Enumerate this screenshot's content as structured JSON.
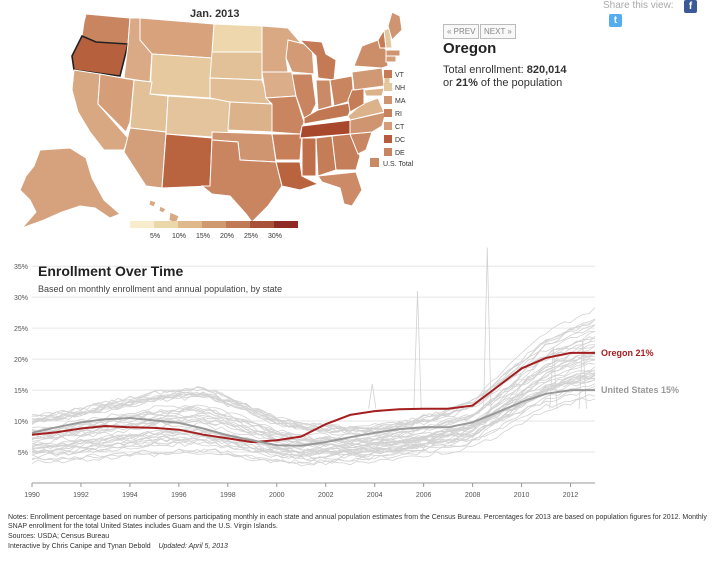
{
  "map": {
    "title": "Jan. 2013",
    "legend_ticks": [
      "5%",
      "10%",
      "15%",
      "20%",
      "25%",
      "30%"
    ],
    "legend_colors": [
      "#f7eccb",
      "#ead7aa",
      "#dfb88b",
      "#d09a70",
      "#c07a56",
      "#a8523a",
      "#8f2a24"
    ],
    "small_states": [
      {
        "label": "VT",
        "color": "#c77b55"
      },
      {
        "label": "NH",
        "color": "#e3c79e"
      },
      {
        "label": "MA",
        "color": "#cf9470"
      },
      {
        "label": "RI",
        "color": "#c7815d"
      },
      {
        "label": "CT",
        "color": "#d49c78"
      },
      {
        "label": "DC",
        "color": "#b65c3d"
      },
      {
        "label": "DE",
        "color": "#c9835e"
      }
    ],
    "us_total": {
      "label": "U.S. Total",
      "color": "#c98a66"
    },
    "selected_state": "Oregon"
  },
  "nav": {
    "prev": "« PREV",
    "next": "NEXT »"
  },
  "detail": {
    "state": "Oregon",
    "line1_prefix": "Total enrollment: ",
    "line1_value": "820,014",
    "line2_prefix": "or ",
    "line2_value": "21%",
    "line2_suffix": " of the population"
  },
  "share": {
    "label": "Share this view:",
    "facebook_glyph": "f",
    "twitter_glyph": "t"
  },
  "colors": {
    "highlight": "#a41f1f",
    "us": "#999999",
    "grid": "#e6e6e6",
    "bg_lines": "#d2d2d2"
  },
  "chart_data": {
    "type": "line",
    "title": "Enrollment Over Time",
    "subtitle": "Based on monthly enrollment and annual population, by state",
    "x_ticks": [
      "1990",
      "1992",
      "1994",
      "1996",
      "1998",
      "2000",
      "2002",
      "2004",
      "2006",
      "2008",
      "2010",
      "2012"
    ],
    "y_ticks": [
      "5%",
      "10%",
      "15%",
      "20%",
      "25%",
      "30%",
      "35%"
    ],
    "xlim": [
      1990,
      2013.0
    ],
    "ylim": [
      0,
      36
    ],
    "grid": true,
    "series": [
      {
        "name": "Oregon",
        "label": "Oregon 21%",
        "x": [
          1990,
          1991,
          1992,
          1993,
          1994,
          1995,
          1996,
          1997,
          1998,
          1999,
          2000,
          2001,
          2002,
          2003,
          2004,
          2005,
          2006,
          2007,
          2008,
          2009,
          2010,
          2011,
          2012,
          2013
        ],
        "values": [
          7.8,
          8.2,
          8.8,
          9.2,
          9.0,
          8.9,
          8.6,
          7.8,
          7.2,
          6.6,
          6.9,
          7.5,
          9.5,
          11.0,
          11.6,
          11.9,
          12.0,
          12.0,
          12.5,
          15.5,
          18.5,
          20.2,
          21.0,
          21.0
        ]
      },
      {
        "name": "United States",
        "label": "United States 15%",
        "x": [
          1990,
          1991,
          1992,
          1993,
          1994,
          1995,
          1996,
          1997,
          1998,
          1999,
          2000,
          2001,
          2002,
          2003,
          2004,
          2005,
          2006,
          2007,
          2008,
          2009,
          2010,
          2011,
          2012,
          2013
        ],
        "values": [
          8.1,
          9.0,
          9.8,
          10.3,
          10.5,
          10.1,
          9.7,
          8.8,
          7.7,
          6.9,
          6.1,
          6.0,
          6.6,
          7.4,
          8.1,
          8.7,
          9.0,
          9.0,
          9.8,
          11.4,
          13.1,
          14.4,
          15.0,
          15.0
        ]
      }
    ]
  },
  "notes": {
    "line1": "Notes: Enrollment percentage based on number of persons participating monthly in each state and annual population estimates from the Census Bureau. Percentages for 2013 are based on population figures for 2012. Monthly SNAP enrollment for the total United States includes Guam and the U.S. Virgin Islands.",
    "sources": "Sources: USDA; Census Bureau",
    "credit": "Interactive by Chris Canipe and Tynan Debold",
    "updated": "Updated: April 5, 2013"
  }
}
